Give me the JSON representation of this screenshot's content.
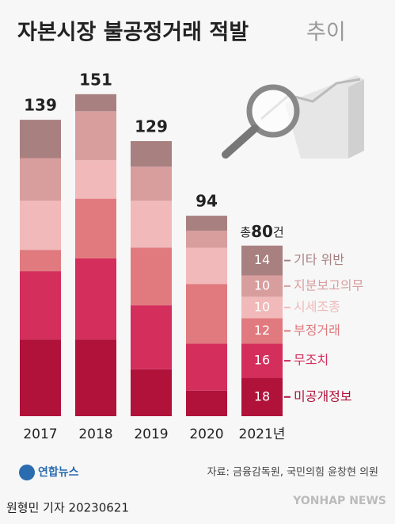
{
  "chart_data": {
    "type": "stacked_bar",
    "title": "자본시장 불공정거래 적발",
    "title_suffix": "추이",
    "categories": [
      "2017",
      "2018",
      "2019",
      "2020",
      "2021년"
    ],
    "totals": [
      139,
      151,
      129,
      94,
      80
    ],
    "total_prefix": "총",
    "total_suffix": "건",
    "series": [
      {
        "name": "미공개정보",
        "color": "#b0123a",
        "values": [
          36,
          36,
          22,
          12,
          18
        ]
      },
      {
        "name": "무조치",
        "color": "#d42e5c",
        "values": [
          32,
          38,
          30,
          22,
          16
        ]
      },
      {
        "name": "부정거래",
        "color": "#e07a7e",
        "values": [
          10,
          28,
          27,
          28,
          12
        ]
      },
      {
        "name": "시세조종",
        "color": "#f1b9b9",
        "values": [
          23,
          18,
          22,
          17,
          10
        ]
      },
      {
        "name": "지분보고의무",
        "color": "#d89e9e",
        "values": [
          20,
          23,
          16,
          8,
          10
        ]
      },
      {
        "name": "기타 위반",
        "color": "#a98080",
        "values": [
          18,
          8,
          12,
          7,
          14
        ]
      }
    ],
    "source": "자료: 금융감독원, 국민의힘 윤창현 의원",
    "logo": "연합뉴스",
    "byline": "원형민 기자  20230621",
    "watermark": "YONHAP NEWS"
  }
}
